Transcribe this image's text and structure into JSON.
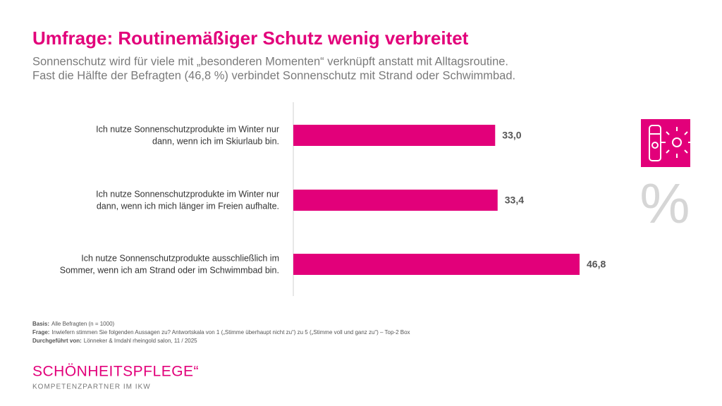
{
  "chart_data": {
    "type": "barh",
    "title": "Umfrage: Routinemäßiger Schutz wenig verbreitet",
    "subtitle": [
      "Sonnenschutz wird für viele mit „besonderen Momenten“ verknüpft anstatt mit Alltagsroutine.",
      "Fast die Hälfte der Befragten (46,8 %) verbindet Sonnenschutz mit Strand oder Schwimmbad."
    ],
    "categories": [
      [
        "Ich nutze Sonnenschutzprodukte im Winter nur",
        "dann, wenn ich im Skiurlaub bin."
      ],
      [
        "Ich nutze Sonnenschutzprodukte im Winter nur",
        "dann, wenn ich mich länger im Freien aufhalte."
      ],
      [
        "Ich nutze Sonnenschutzprodukte ausschließlich im",
        "Sommer, wenn ich am Strand oder im Schwimmbad bin."
      ]
    ],
    "values": [
      33.0,
      33.4,
      46.8
    ],
    "value_labels": [
      "33,0",
      "33,4",
      "46,8"
    ],
    "color": "#e2007a"
  },
  "icon_text": "%",
  "footer": [
    {
      "label": "Basis:",
      "text": "Alle Befragten (n = 1000)"
    },
    {
      "label": "Frage:",
      "text": "Inwiefern stimmen Sie folgenden Aussagen zu? Antwortskala von 1 („Stimme überhaupt nicht zu“) zu 5  („Stimme voll und ganz zu“) – Top-2 Box"
    },
    {
      "label": "Durchgeführt von:",
      "text": "Lönneker & Imdahl rheingold salon, 11 / 2025"
    }
  ],
  "logo": {
    "name": "SCHÖNHEITSPFLEGE“",
    "tagline": "KOMPETENZPARTNER IM IKW"
  }
}
